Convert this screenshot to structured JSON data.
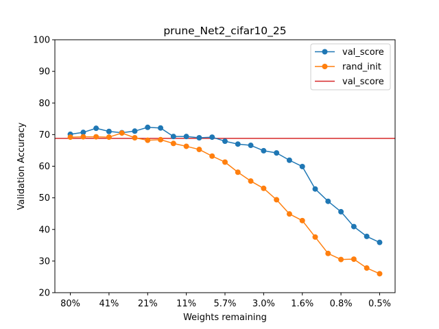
{
  "chart_data": {
    "type": "line",
    "title": "prune_Net2_cifar10_25",
    "xlabel": "Weights remaining",
    "ylabel": "Validation Accuracy",
    "ylim": [
      20,
      100
    ],
    "yticks": [
      20,
      30,
      40,
      50,
      60,
      70,
      80,
      90,
      100
    ],
    "x_tick_labels": [
      "80%",
      "41%",
      "21%",
      "11%",
      "5.7%",
      "3.0%",
      "1.6%",
      "0.8%",
      "0.5%"
    ],
    "x_tick_positions": [
      0,
      3,
      6,
      9,
      12,
      15,
      18,
      21,
      24
    ],
    "x": [
      0,
      1,
      2,
      3,
      4,
      5,
      6,
      7,
      8,
      9,
      10,
      11,
      12,
      13,
      14,
      15,
      16,
      17,
      18,
      19,
      20,
      21,
      22,
      23,
      24
    ],
    "grid": false,
    "legend_position": "top-right",
    "series": [
      {
        "name": "val_score",
        "color": "#1f77b4",
        "marker": "circle",
        "values": [
          70.1,
          70.7,
          72.0,
          71.0,
          70.6,
          71.1,
          72.3,
          72.1,
          69.4,
          69.4,
          69.0,
          69.2,
          67.9,
          67.0,
          66.6,
          64.9,
          64.2,
          61.9,
          59.9,
          52.8,
          48.9,
          45.6,
          40.9,
          37.8,
          35.9
        ]
      },
      {
        "name": "rand_init",
        "color": "#ff7f0e",
        "marker": "circle",
        "values": [
          69.2,
          69.3,
          69.3,
          69.2,
          70.5,
          69.0,
          68.2,
          68.4,
          67.2,
          66.3,
          65.3,
          63.2,
          61.3,
          58.1,
          55.3,
          53.0,
          49.4,
          44.9,
          42.8,
          37.6,
          32.4,
          30.5,
          30.6,
          27.8,
          26.0
        ]
      }
    ],
    "hlines": [
      {
        "name": "val_score",
        "color": "#d62728",
        "y": 68.8
      }
    ]
  }
}
